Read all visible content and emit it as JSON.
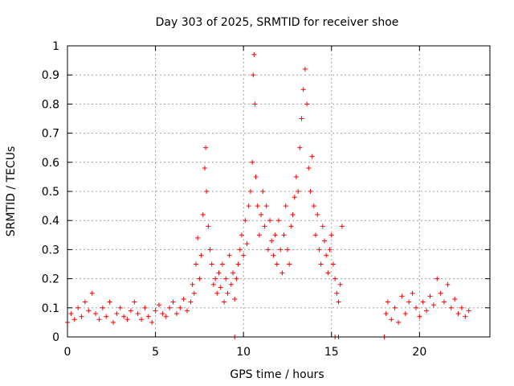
{
  "chart_data": {
    "type": "scatter",
    "title": "Day 303 of 2025, SRMTID for receiver shoe",
    "xlabel": "GPS time / hours",
    "ylabel": "SRMTID / TECUs",
    "xlim": [
      0,
      24
    ],
    "ylim": [
      0,
      1
    ],
    "x_ticks": [
      0,
      5,
      10,
      15,
      20
    ],
    "y_ticks": [
      0,
      0.1,
      0.2,
      0.3,
      0.4,
      0.5,
      0.6,
      0.7,
      0.8,
      0.9,
      1
    ],
    "x_tick_labels": [
      "0",
      "5",
      "10",
      "15",
      "20"
    ],
    "y_tick_labels": [
      "0",
      "0.1",
      "0.2",
      "0.3",
      "0.4",
      "0.5",
      "0.6",
      "0.7",
      "0.8",
      "0.9",
      "1"
    ],
    "grid": true,
    "marker": "+",
    "marker_color": "#ff0000",
    "series": [
      {
        "name": "SRMTID",
        "x": [
          0.0,
          0.2,
          0.4,
          0.6,
          0.8,
          1.0,
          1.2,
          1.4,
          1.6,
          1.8,
          2.0,
          2.2,
          2.4,
          2.6,
          2.8,
          3.0,
          3.2,
          3.4,
          3.6,
          3.8,
          4.0,
          4.2,
          4.4,
          4.6,
          4.8,
          5.0,
          5.2,
          5.4,
          5.6,
          5.8,
          6.0,
          6.2,
          6.4,
          6.6,
          6.8,
          7.0,
          7.1,
          7.2,
          7.3,
          7.4,
          7.5,
          7.6,
          7.7,
          7.8,
          7.85,
          7.9,
          8.0,
          8.1,
          8.2,
          8.3,
          8.4,
          8.5,
          8.6,
          8.7,
          8.8,
          8.9,
          9.0,
          9.1,
          9.2,
          9.3,
          9.4,
          9.5,
          9.6,
          9.7,
          9.8,
          9.9,
          10.0,
          10.1,
          10.2,
          10.3,
          10.4,
          10.5,
          10.55,
          10.6,
          10.65,
          10.7,
          10.8,
          10.9,
          11.0,
          11.1,
          11.2,
          11.3,
          11.4,
          11.5,
          11.6,
          11.7,
          11.8,
          11.9,
          12.0,
          12.1,
          12.2,
          12.3,
          12.4,
          12.5,
          12.6,
          12.7,
          12.8,
          12.9,
          13.0,
          13.1,
          13.2,
          13.3,
          13.4,
          13.5,
          13.6,
          13.7,
          13.8,
          13.9,
          14.0,
          14.1,
          14.2,
          14.3,
          14.4,
          14.5,
          14.6,
          14.7,
          14.8,
          14.9,
          15.0,
          15.1,
          15.2,
          15.3,
          15.4,
          15.5,
          15.6,
          9.5,
          15.2,
          15.4,
          18.0,
          18.1,
          18.2,
          18.4,
          18.6,
          18.8,
          19.0,
          19.2,
          19.4,
          19.6,
          19.8,
          20.0,
          20.2,
          20.4,
          20.6,
          20.8,
          21.0,
          21.2,
          21.4,
          21.6,
          21.8,
          22.0,
          22.2,
          22.4,
          22.6,
          22.8
        ],
        "y": [
          0.05,
          0.08,
          0.06,
          0.1,
          0.07,
          0.12,
          0.09,
          0.15,
          0.08,
          0.06,
          0.1,
          0.07,
          0.12,
          0.05,
          0.08,
          0.1,
          0.07,
          0.06,
          0.09,
          0.12,
          0.08,
          0.06,
          0.1,
          0.07,
          0.05,
          0.09,
          0.11,
          0.08,
          0.07,
          0.1,
          0.12,
          0.08,
          0.1,
          0.13,
          0.09,
          0.12,
          0.18,
          0.15,
          0.25,
          0.34,
          0.2,
          0.28,
          0.42,
          0.58,
          0.65,
          0.5,
          0.38,
          0.3,
          0.25,
          0.18,
          0.2,
          0.15,
          0.22,
          0.17,
          0.25,
          0.12,
          0.2,
          0.15,
          0.28,
          0.18,
          0.22,
          0.13,
          0.2,
          0.25,
          0.3,
          0.35,
          0.28,
          0.4,
          0.32,
          0.45,
          0.5,
          0.6,
          0.9,
          0.97,
          0.8,
          0.55,
          0.45,
          0.35,
          0.42,
          0.5,
          0.38,
          0.45,
          0.3,
          0.4,
          0.33,
          0.28,
          0.35,
          0.25,
          0.4,
          0.3,
          0.22,
          0.35,
          0.45,
          0.3,
          0.25,
          0.38,
          0.42,
          0.48,
          0.55,
          0.5,
          0.65,
          0.75,
          0.85,
          0.92,
          0.8,
          0.58,
          0.5,
          0.62,
          0.45,
          0.35,
          0.42,
          0.3,
          0.25,
          0.38,
          0.33,
          0.28,
          0.22,
          0.3,
          0.35,
          0.25,
          0.2,
          0.15,
          0.12,
          0.18,
          0.38,
          0.0,
          0.0,
          0.0,
          0.0,
          0.08,
          0.12,
          0.06,
          0.1,
          0.05,
          0.14,
          0.08,
          0.12,
          0.15,
          0.1,
          0.07,
          0.12,
          0.09,
          0.14,
          0.11,
          0.2,
          0.15,
          0.12,
          0.18,
          0.1,
          0.13,
          0.08,
          0.1,
          0.07,
          0.09
        ]
      }
    ]
  }
}
